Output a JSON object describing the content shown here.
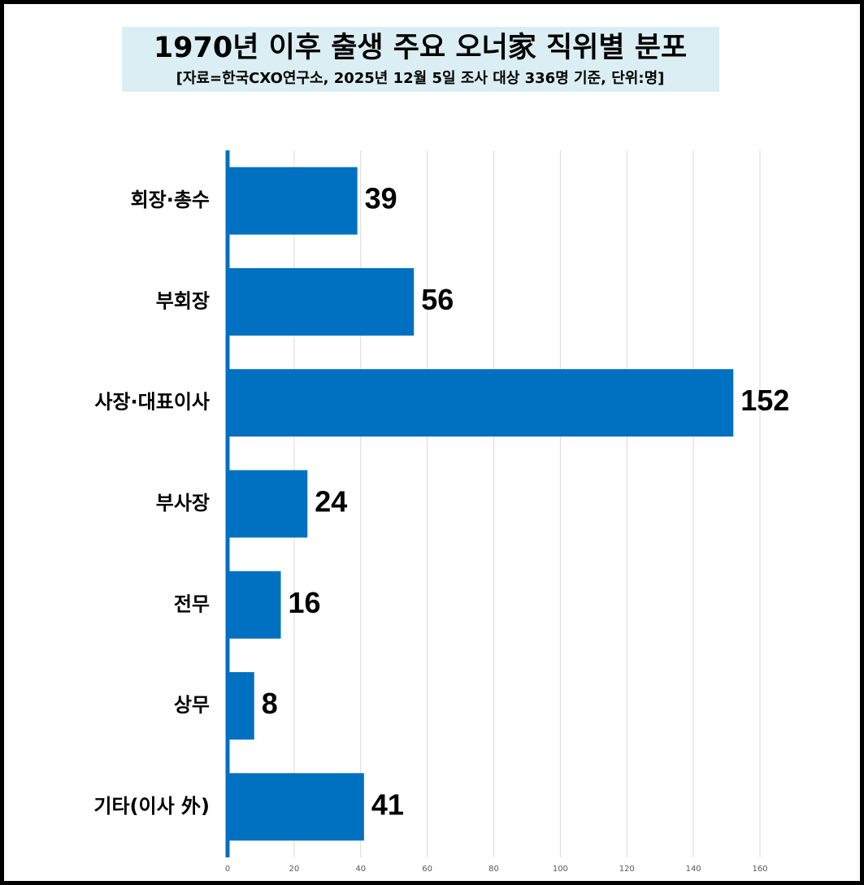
{
  "chart_data": {
    "type": "bar",
    "orientation": "horizontal",
    "title": "1970년 이후 출생 주요 오너家 직위별 분포",
    "subtitle": "[자료=한국CXO연구소, 2025년 12월 5일 조사 대상 336명 기준, 단위:명]",
    "categories": [
      "회장·총수",
      "부회장",
      "사장·대표이사",
      "부사장",
      "전무",
      "상무",
      "기타(이사 外)"
    ],
    "values": [
      39,
      56,
      152,
      24,
      16,
      8,
      41
    ],
    "color": "#0070c0",
    "xlim": [
      0,
      160
    ],
    "xticks": [
      0,
      20,
      40,
      60,
      80,
      100,
      120,
      140,
      160
    ],
    "grid": true
  }
}
